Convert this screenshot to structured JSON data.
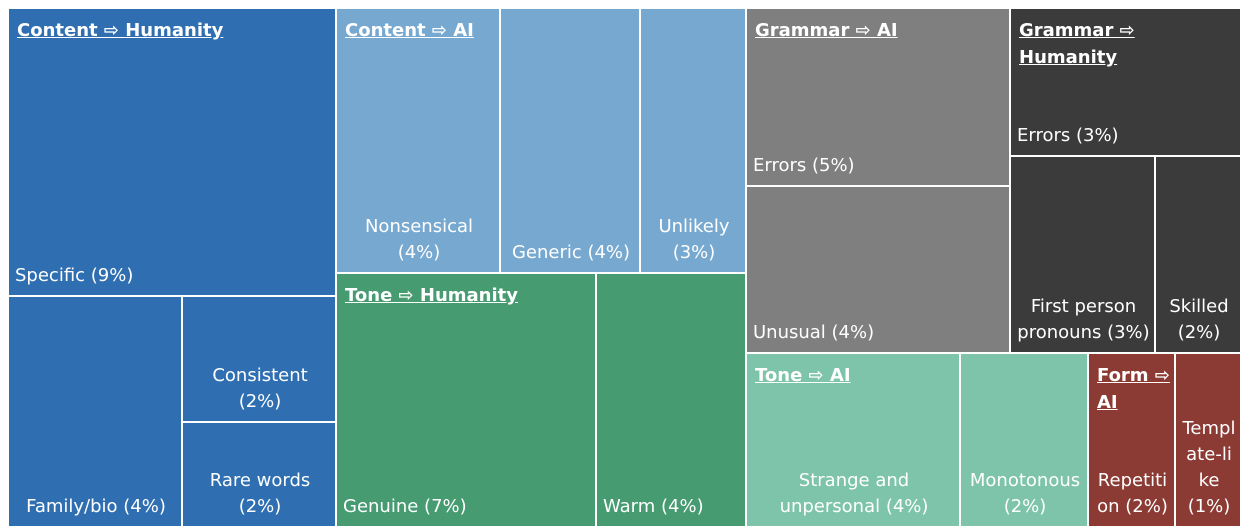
{
  "chart_data": {
    "type": "treemap",
    "groups": [
      {
        "name": "Content ⇨ Humanity",
        "color": "#2f6fb1",
        "children": [
          {
            "label": "Specific (9%)",
            "value": 9
          },
          {
            "label": "Family/bio (4%)",
            "value": 4
          },
          {
            "label": "Consistent (2%)",
            "value": 2
          },
          {
            "label": "Rare words (2%)",
            "value": 2
          }
        ]
      },
      {
        "name": "Content ⇨ AI",
        "color": "#77a8d0",
        "children": [
          {
            "label": "Nonsensical (4%)",
            "value": 4
          },
          {
            "label": "Generic (4%)",
            "value": 4
          },
          {
            "label": "Unlikely (3%)",
            "value": 3
          }
        ]
      },
      {
        "name": "Tone ⇨ Humanity",
        "color": "#469b71",
        "children": [
          {
            "label": "Genuine (7%)",
            "value": 7
          },
          {
            "label": "Warm (4%)",
            "value": 4
          }
        ]
      },
      {
        "name": "Grammar ⇨ AI",
        "color": "#7f7f7f",
        "children": [
          {
            "label": "Errors (5%)",
            "value": 5
          },
          {
            "label": "Unusual (4%)",
            "value": 4
          }
        ]
      },
      {
        "name": "Grammar ⇨ Humanity",
        "color": "#3b3b3b",
        "children": [
          {
            "label": "Errors (3%)",
            "value": 3
          },
          {
            "label": "First person pronouns (3%)",
            "value": 3
          },
          {
            "label": "Skilled (2%)",
            "value": 2
          }
        ]
      },
      {
        "name": "Tone ⇨ AI",
        "color": "#7dc4ab",
        "children": [
          {
            "label": "Strange and unpersonal (4%)",
            "value": 4
          },
          {
            "label": "Monotonous (2%)",
            "value": 2
          }
        ]
      },
      {
        "name": "Form ⇨ AI",
        "color": "#8c3a34",
        "children": [
          {
            "label": "Repetition (2%)",
            "value": 2
          },
          {
            "label": "Template-like (1%)",
            "value": 1
          }
        ]
      }
    ]
  }
}
